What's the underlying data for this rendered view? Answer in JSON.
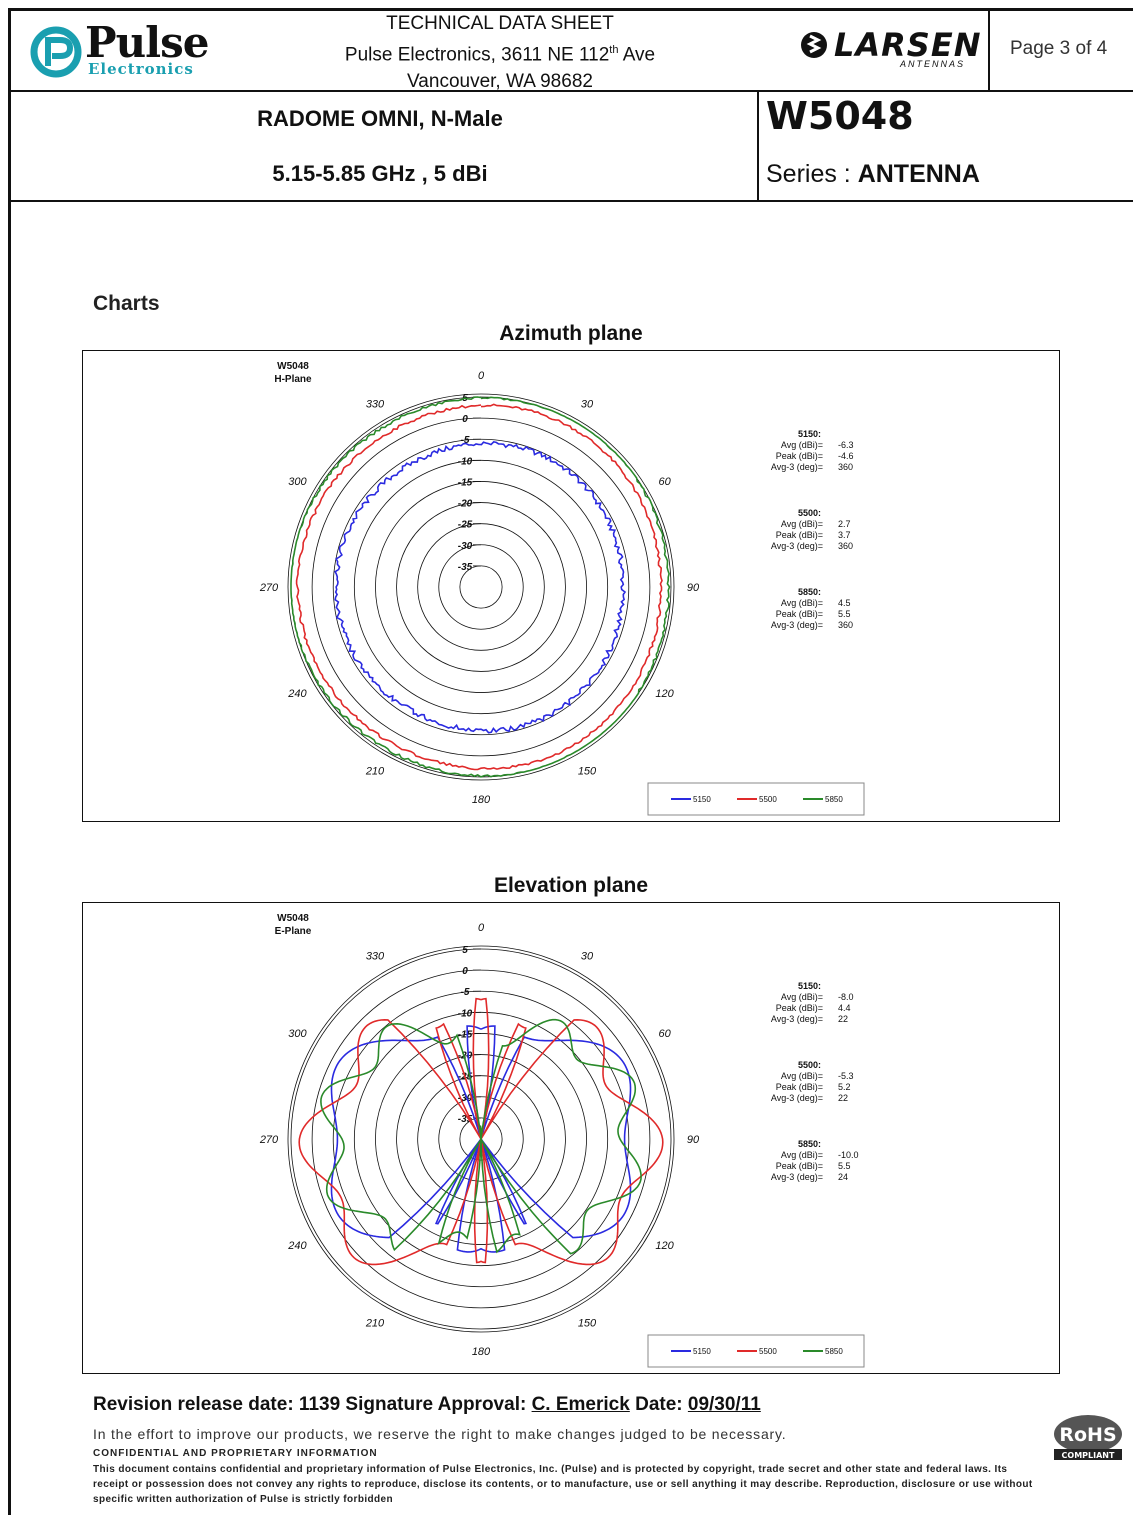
{
  "header": {
    "company": {
      "name": "Pulse",
      "sub": "Electronics"
    },
    "datasheet_title": "TECHNICAL DATA SHEET",
    "address_line1": "Pulse Electronics, 3611 NE 112",
    "address_sup": "th",
    "address_line1_end": " Ave",
    "address_line2": "Vancouver, WA 98682",
    "brand": "LARSEN",
    "brand_sub": "ANTENNAS",
    "page": "Page 3 of 4"
  },
  "product": {
    "description": "RADOME OMNI, N-Male",
    "spec": "5.15-5.85 GHz , 5 dBi",
    "part_number": "W5048",
    "series_label": "Series : ",
    "series_value": "ANTENNA"
  },
  "charts_label": "Charts",
  "chart_data": [
    {
      "type": "polar",
      "title": "Azimuth plane",
      "label_line1": "W5048",
      "label_line2": "H-Plane",
      "radial_ticks": [
        "5",
        "0",
        "-5",
        "-10",
        "-15",
        "-20",
        "-25",
        "-30",
        "-35"
      ],
      "radial_range": [
        -40,
        5
      ],
      "angle_ticks": [
        "0",
        "30",
        "60",
        "90",
        "120",
        "150",
        "180",
        "210",
        "240",
        "270",
        "300",
        "330"
      ],
      "series": [
        {
          "name": "5150",
          "color": "#2a2ae0",
          "gain_dbi": -6.0,
          "ripple": 0.6
        },
        {
          "name": "5500",
          "color": "#e02a2a",
          "gain_dbi": 3.0,
          "ripple": 0.3
        },
        {
          "name": "5850",
          "color": "#2a8a2a",
          "gain_dbi": 4.8,
          "ripple": 0.3
        }
      ],
      "stats": [
        {
          "freq": "5150:",
          "rows": [
            [
              "Avg (dBi)=",
              "-6.3"
            ],
            [
              "Peak (dBi)=",
              "-4.6"
            ],
            [
              "Avg-3 (deg)=",
              "360"
            ]
          ]
        },
        {
          "freq": "5500:",
          "rows": [
            [
              "Avg (dBi)=",
              "2.7"
            ],
            [
              "Peak (dBi)=",
              "3.7"
            ],
            [
              "Avg-3 (deg)=",
              "360"
            ]
          ]
        },
        {
          "freq": "5850:",
          "rows": [
            [
              "Avg (dBi)=",
              "4.5"
            ],
            [
              "Peak (dBi)=",
              "5.5"
            ],
            [
              "Avg-3 (deg)=",
              "360"
            ]
          ]
        }
      ],
      "legend": [
        "5150",
        "5500",
        "5850"
      ]
    },
    {
      "type": "polar",
      "title": "Elevation plane",
      "label_line1": "W5048",
      "label_line2": "E-Plane",
      "radial_ticks": [
        "5",
        "0",
        "-5",
        "-10",
        "-15",
        "-20",
        "-25",
        "-30",
        "-35"
      ],
      "radial_range": [
        -40,
        5
      ],
      "angle_ticks": [
        "0",
        "30",
        "60",
        "90",
        "120",
        "150",
        "180",
        "210",
        "240",
        "270",
        "300",
        "330"
      ],
      "series": [
        {
          "name": "5150",
          "color": "#2a2ae0",
          "pattern": "5150"
        },
        {
          "name": "5500",
          "color": "#e02a2a",
          "pattern": "5500"
        },
        {
          "name": "5850",
          "color": "#2a8a2a",
          "pattern": "5850"
        }
      ],
      "stats": [
        {
          "freq": "5150:",
          "rows": [
            [
              "Avg (dBi)=",
              "-8.0"
            ],
            [
              "Peak (dBi)=",
              "4.4"
            ],
            [
              "Avg-3 (deg)=",
              "22"
            ]
          ]
        },
        {
          "freq": "5500:",
          "rows": [
            [
              "Avg (dBi)=",
              "-5.3"
            ],
            [
              "Peak (dBi)=",
              "5.2"
            ],
            [
              "Avg-3 (deg)=",
              "22"
            ]
          ]
        },
        {
          "freq": "5850:",
          "rows": [
            [
              "Avg (dBi)=",
              "-10.0"
            ],
            [
              "Peak (dBi)=",
              "5.5"
            ],
            [
              "Avg-3 (deg)=",
              "24"
            ]
          ]
        }
      ],
      "legend": [
        "5150",
        "5500",
        "5850"
      ]
    }
  ],
  "footer": {
    "rev_label": "Revision release date: 1139 Signature Approval: ",
    "signer": "C. Emerick",
    "date_label": " Date: ",
    "date": "09/30/11",
    "effort": "In the effort to improve our products, we reserve the right to make changes judged to be necessary.",
    "confidential": "CONFIDENTIAL AND PROPRIETARY INFORMATION",
    "legal": "This document contains confidential and proprietary information of Pulse Electronics, Inc. (Pulse) and is protected by copyright, trade secret and other state and federal laws. Its receipt or possession does not convey any rights to reproduce, disclose its contents, or to manufacture, use or sell anything it may describe. Reproduction, disclosure or use without specific written authorization of Pulse is strictly forbidden",
    "rohs": "RoHS",
    "rohs_sub": "COMPLIANT"
  }
}
